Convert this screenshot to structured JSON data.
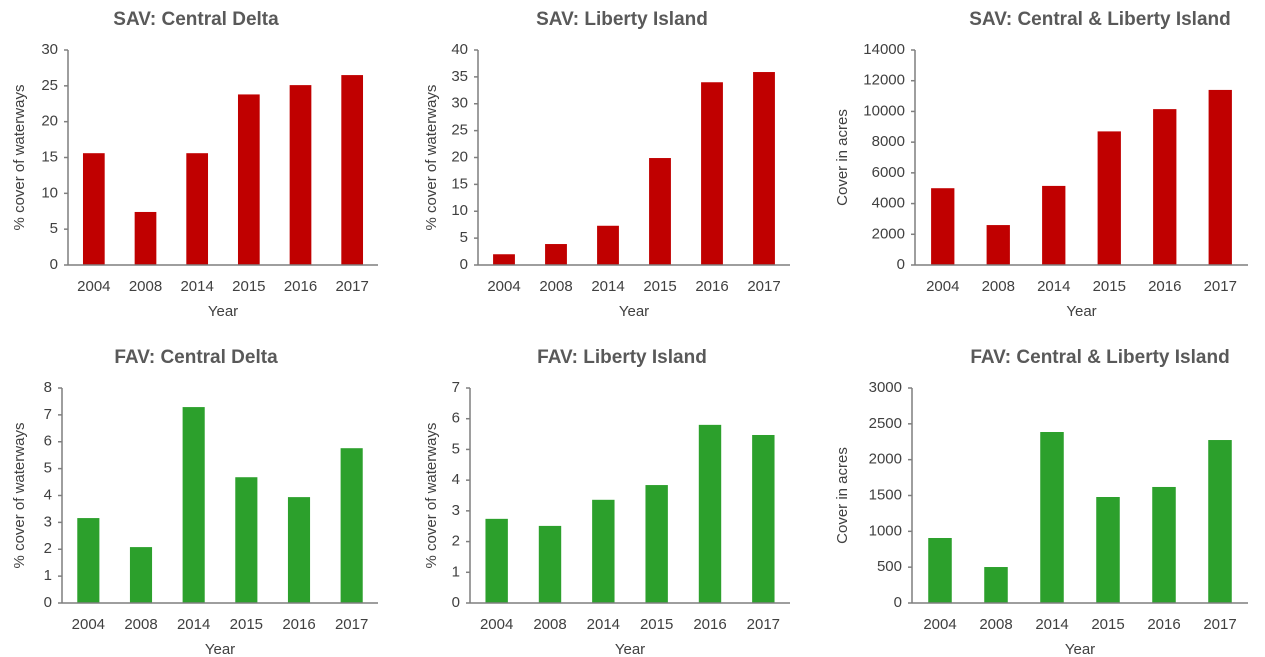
{
  "chart_data": [
    {
      "type": "bar",
      "title": "SAV: Central Delta",
      "x_label": "Year",
      "y_label": "% cover of waterways",
      "categories": [
        "2004",
        "2008",
        "2014",
        "2015",
        "2016",
        "2017"
      ],
      "values": [
        15.6,
        7.4,
        15.6,
        23.8,
        25.1,
        26.5
      ],
      "color": "#c00000",
      "ylim": [
        0,
        30
      ],
      "yticks": [
        0,
        5,
        10,
        15,
        20,
        25,
        30
      ]
    },
    {
      "type": "bar",
      "title": "SAV: Liberty Island",
      "x_label": "Year",
      "y_label": "% cover of waterways",
      "categories": [
        "2004",
        "2008",
        "2014",
        "2015",
        "2016",
        "2017"
      ],
      "values": [
        2.0,
        3.9,
        7.3,
        19.9,
        34.0,
        35.9
      ],
      "color": "#c00000",
      "ylim": [
        0,
        40
      ],
      "yticks": [
        0,
        5,
        10,
        15,
        20,
        25,
        30,
        35,
        40
      ]
    },
    {
      "type": "bar",
      "title": "SAV: Central & Liberty Island",
      "x_label": "Year",
      "y_label": "Cover in acres",
      "categories": [
        "2004",
        "2008",
        "2014",
        "2015",
        "2016",
        "2017"
      ],
      "values": [
        5000,
        2600,
        5150,
        8700,
        10150,
        11400
      ],
      "color": "#c00000",
      "ylim": [
        0,
        14000
      ],
      "yticks": [
        0,
        2000,
        4000,
        6000,
        8000,
        10000,
        12000,
        14000
      ]
    },
    {
      "type": "bar",
      "title": "FAV: Central Delta",
      "x_label": "Year",
      "y_label": "% cover of waterways",
      "categories": [
        "2004",
        "2008",
        "2014",
        "2015",
        "2016",
        "2017"
      ],
      "values": [
        3.16,
        2.08,
        7.29,
        4.68,
        3.94,
        5.76
      ],
      "color": "#2ca02c",
      "ylim": [
        0,
        8
      ],
      "yticks": [
        0,
        1,
        2,
        3,
        4,
        5,
        6,
        7,
        8
      ]
    },
    {
      "type": "bar",
      "title": "FAV: Liberty Island",
      "x_label": "Year",
      "y_label": "% cover of waterways",
      "categories": [
        "2004",
        "2008",
        "2014",
        "2015",
        "2016",
        "2017"
      ],
      "values": [
        2.74,
        2.51,
        3.36,
        3.84,
        5.8,
        5.47
      ],
      "color": "#2ca02c",
      "ylim": [
        0,
        7
      ],
      "yticks": [
        0,
        1,
        2,
        3,
        4,
        5,
        6,
        7
      ]
    },
    {
      "type": "bar",
      "title": "FAV: Central & Liberty Island",
      "x_label": "Year",
      "y_label": "Cover in acres",
      "categories": [
        "2004",
        "2008",
        "2014",
        "2015",
        "2016",
        "2017"
      ],
      "values": [
        907,
        502,
        2386,
        1479,
        1619,
        2274
      ],
      "color": "#2ca02c",
      "ylim": [
        0,
        3000
      ],
      "yticks": [
        0,
        500,
        1000,
        1500,
        2000,
        2500,
        3000
      ]
    }
  ]
}
